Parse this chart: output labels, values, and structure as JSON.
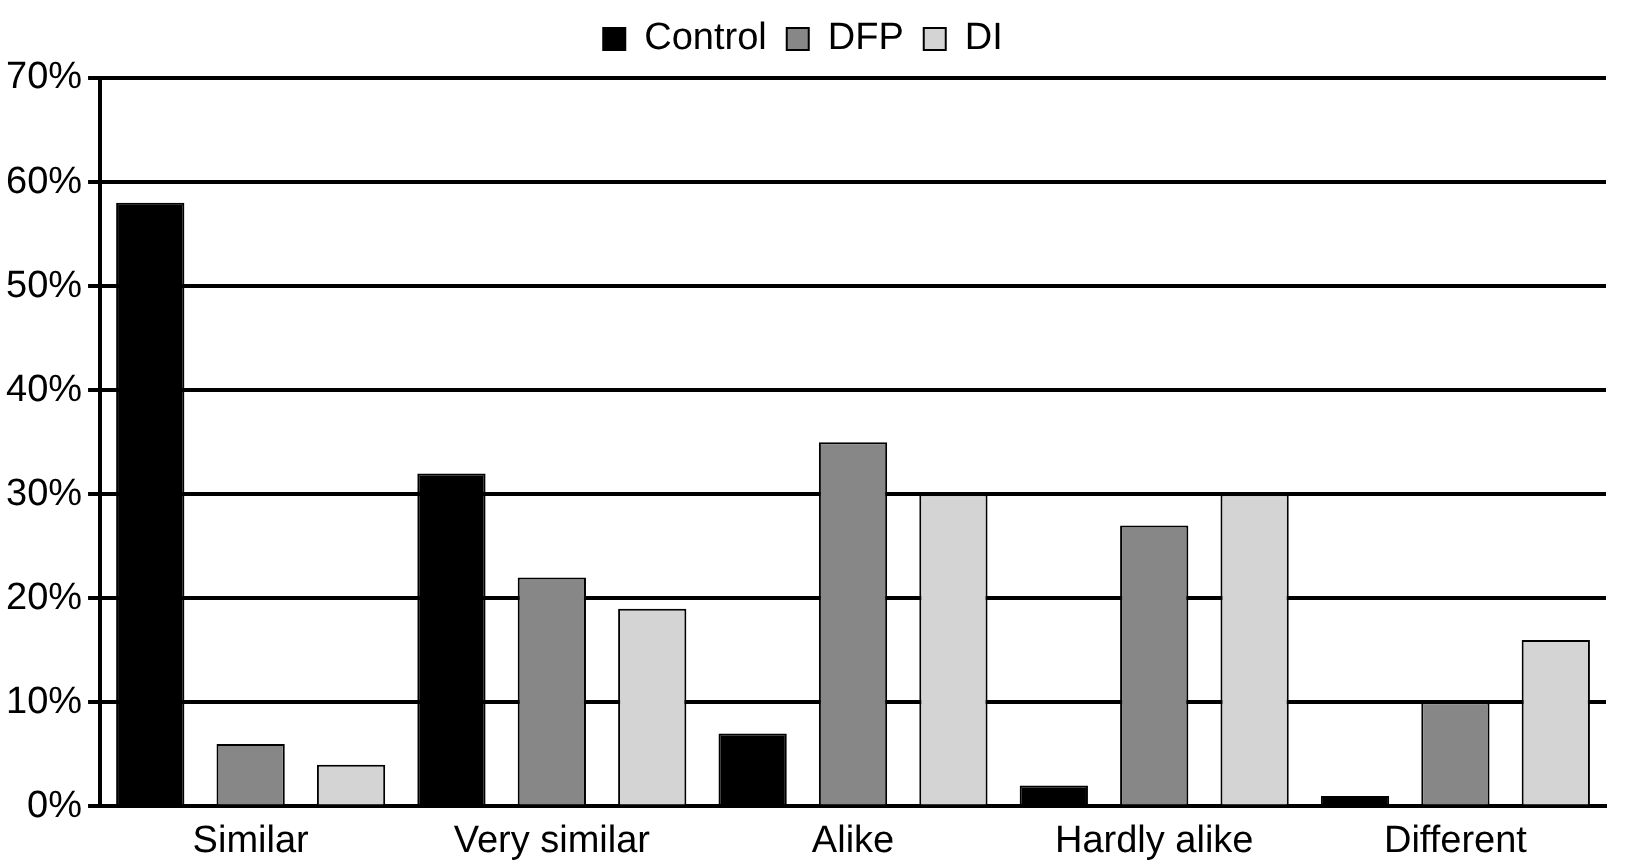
{
  "chart_data": {
    "type": "bar",
    "categories": [
      "Similar",
      "Very similar",
      "Alike",
      "Hardly alike",
      "Different"
    ],
    "series": [
      {
        "name": "Control",
        "color": "#000000",
        "values": [
          58,
          32,
          7,
          2,
          1
        ]
      },
      {
        "name": "DFP",
        "color": "#878787",
        "values": [
          6,
          22,
          35,
          27,
          10
        ]
      },
      {
        "name": "DI",
        "color": "#d4d4d4",
        "values": [
          4,
          19,
          30,
          30,
          16
        ]
      }
    ],
    "ylim": [
      0,
      70
    ],
    "yticks": [
      {
        "value": 0,
        "label": "0%"
      },
      {
        "value": 10,
        "label": "10%"
      },
      {
        "value": 20,
        "label": "20%"
      },
      {
        "value": 30,
        "label": "30%"
      },
      {
        "value": 40,
        "label": "40%"
      },
      {
        "value": 50,
        "label": "50%"
      },
      {
        "value": 60,
        "label": "60%"
      },
      {
        "value": 70,
        "label": "70%"
      }
    ],
    "grid": "y",
    "legend": "top"
  }
}
